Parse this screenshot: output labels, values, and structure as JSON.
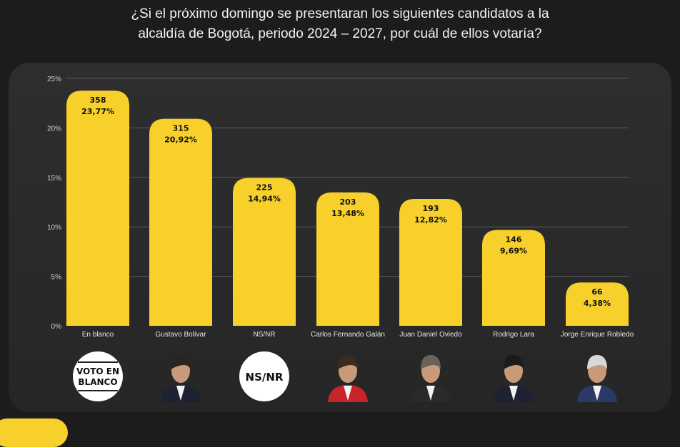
{
  "title_lines": [
    "¿Si el próximo domingo se presentaran los siguientes candidatos a la",
    "alcaldía de Bogotá, periodo 2024 – 2027, por cuál de ellos votaría?"
  ],
  "chart_data": {
    "type": "bar",
    "categories": [
      "En blanco",
      "Gustavo Bolívar",
      "NS/NR",
      "Carlos Fernando Galán",
      "Juan Daniel Oviedo",
      "Rodrigo Lara",
      "Jorge Enrique Robledo"
    ],
    "counts": [
      358,
      315,
      225,
      203,
      193,
      146,
      66
    ],
    "values": [
      23.77,
      20.92,
      14.94,
      13.48,
      12.82,
      9.69,
      4.38
    ],
    "value_labels": [
      "23,77%",
      "20,92%",
      "14,94%",
      "13,48%",
      "12,82%",
      "9,69%",
      "4,38%"
    ],
    "ylim": [
      0,
      25
    ],
    "yticks": [
      "0%",
      "5%",
      "10%",
      "15%",
      "20%",
      "25%"
    ],
    "grid": true,
    "bar_color": "#f7d02b"
  },
  "badges": {
    "blank": [
      "VOTO EN",
      "BLANCO"
    ],
    "nsnr": "NS/NR"
  }
}
